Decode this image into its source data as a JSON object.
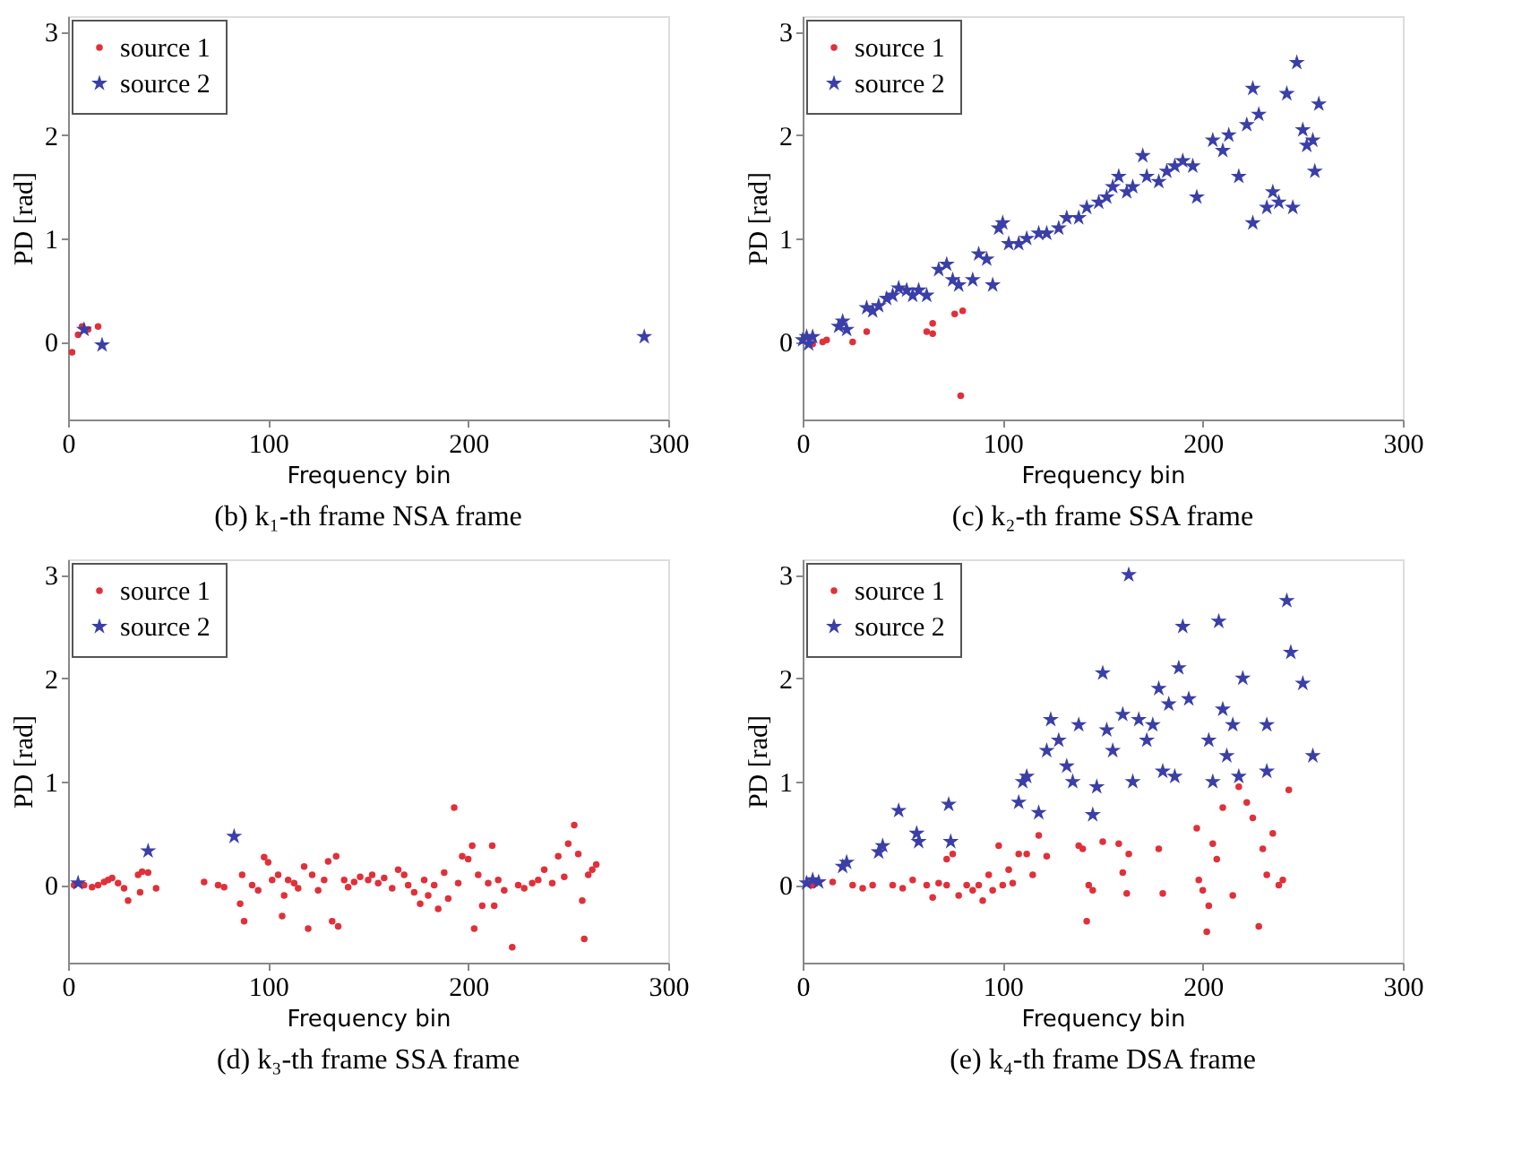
{
  "chart_data": [
    {
      "type": "scatter",
      "title": "(b) k₁-th frame  NSA frame",
      "xlabel": "Frequency bin",
      "ylabel": "PD  [rad]",
      "xlim": [
        0,
        300
      ],
      "ylim": [
        -0.75,
        3.15
      ],
      "xticks": [
        0,
        100,
        200,
        300
      ],
      "yticks": [
        0,
        1,
        2,
        3
      ],
      "grid": false,
      "legend": "top left",
      "series": [
        {
          "name": "source 1",
          "color": "#e0303a",
          "marker": "circle",
          "x": [
            2,
            5,
            7,
            10,
            15
          ],
          "values": [
            -0.1,
            0.07,
            0.15,
            0.12,
            0.15
          ]
        },
        {
          "name": "source 2",
          "color": "#3a3fa8",
          "marker": "star",
          "x": [
            8,
            17,
            288
          ],
          "values": [
            0.12,
            -0.03,
            0.05
          ]
        }
      ]
    },
    {
      "type": "scatter",
      "title": "(c) k₂-th frame  SSA frame",
      "xlabel": "Frequency bin",
      "ylabel": "PD  [rad]",
      "xlim": [
        0,
        300
      ],
      "ylim": [
        -0.75,
        3.15
      ],
      "xticks": [
        0,
        100,
        200,
        300
      ],
      "yticks": [
        0,
        1,
        2,
        3
      ],
      "grid": false,
      "legend": "top left",
      "series": [
        {
          "name": "source 1",
          "color": "#e0303a",
          "marker": "circle",
          "x": [
            5,
            10,
            12,
            25,
            32,
            62,
            65,
            65,
            76,
            80,
            79
          ],
          "values": [
            -0.02,
            0.0,
            0.02,
            0.0,
            0.1,
            0.1,
            0.08,
            0.18,
            0.27,
            0.3,
            -0.52
          ]
        },
        {
          "name": "source 2",
          "color": "#3a3fa8",
          "marker": "star",
          "x": [
            0,
            2,
            3,
            5,
            18,
            20,
            22,
            32,
            35,
            38,
            42,
            45,
            48,
            52,
            55,
            58,
            62,
            68,
            72,
            75,
            78,
            85,
            88,
            92,
            95,
            98,
            100,
            103,
            108,
            112,
            118,
            122,
            128,
            132,
            138,
            142,
            148,
            152,
            155,
            158,
            162,
            165,
            170,
            172,
            178,
            182,
            186,
            190,
            195,
            197,
            205,
            210,
            213,
            218,
            222,
            225,
            228,
            225,
            232,
            235,
            238,
            242,
            245,
            247,
            250,
            252,
            255,
            256,
            258
          ],
          "values": [
            0.02,
            0.05,
            -0.02,
            0.05,
            0.15,
            0.2,
            0.12,
            0.33,
            0.3,
            0.35,
            0.42,
            0.45,
            0.52,
            0.5,
            0.45,
            0.5,
            0.45,
            0.7,
            0.75,
            0.6,
            0.55,
            0.6,
            0.85,
            0.8,
            0.55,
            1.1,
            1.15,
            0.95,
            0.95,
            1.0,
            1.05,
            1.05,
            1.1,
            1.2,
            1.2,
            1.3,
            1.35,
            1.4,
            1.5,
            1.6,
            1.45,
            1.5,
            1.8,
            1.6,
            1.55,
            1.65,
            1.7,
            1.75,
            1.7,
            1.4,
            1.95,
            1.85,
            2.0,
            1.6,
            2.1,
            2.45,
            2.2,
            1.15,
            1.3,
            1.45,
            1.35,
            2.4,
            1.3,
            2.7,
            2.05,
            1.9,
            1.95,
            1.65,
            2.3
          ]
        }
      ]
    },
    {
      "type": "scatter",
      "title": "(d) k₃-th frame  SSA frame",
      "xlabel": "Frequency bin",
      "ylabel": "PD  [rad]",
      "xlim": [
        0,
        300
      ],
      "ylim": [
        -0.75,
        3.15
      ],
      "xticks": [
        0,
        100,
        200,
        300
      ],
      "yticks": [
        0,
        1,
        2,
        3
      ],
      "grid": false,
      "legend": "top left",
      "series": [
        {
          "name": "source 1",
          "color": "#e0303a",
          "marker": "circle",
          "x": [
            3,
            8,
            12,
            15,
            18,
            20,
            22,
            25,
            28,
            30,
            35,
            37,
            36,
            40,
            44,
            68,
            75,
            78,
            87,
            86,
            88,
            92,
            95,
            98,
            100,
            102,
            105,
            107,
            108,
            110,
            113,
            115,
            118,
            120,
            122,
            125,
            128,
            130,
            132,
            134,
            135,
            138,
            140,
            143,
            146,
            150,
            152,
            155,
            158,
            162,
            165,
            168,
            170,
            173,
            176,
            178,
            180,
            183,
            185,
            188,
            190,
            193,
            195,
            197,
            200,
            202,
            203,
            205,
            207,
            210,
            212,
            213,
            215,
            218,
            222,
            225,
            228,
            232,
            235,
            238,
            242,
            245,
            248,
            250,
            253,
            255,
            257,
            258,
            260,
            262,
            264
          ],
          "values": [
            0,
            0,
            -0.02,
            0,
            0.03,
            0.05,
            0.07,
            0.02,
            -0.03,
            -0.15,
            0.1,
            0.13,
            -0.07,
            0.12,
            -0.03,
            0.03,
            0.0,
            -0.02,
            0.1,
            -0.18,
            -0.35,
            0,
            -0.05,
            0.27,
            0.22,
            0.05,
            0.1,
            -0.3,
            -0.1,
            0.05,
            0.02,
            -0.03,
            0.18,
            -0.42,
            0.1,
            -0.05,
            0.05,
            0.23,
            -0.35,
            0.28,
            -0.4,
            0.05,
            -0.02,
            0.03,
            0.08,
            0.05,
            0.1,
            0.02,
            0.07,
            -0.03,
            0.15,
            0.1,
            0.0,
            -0.07,
            -0.18,
            0.05,
            -0.1,
            0.0,
            -0.23,
            0.12,
            -0.13,
            0.75,
            0.02,
            0.28,
            0.25,
            0.38,
            -0.42,
            0.1,
            -0.2,
            0.02,
            0.38,
            -0.2,
            0.05,
            -0.05,
            -0.6,
            0.0,
            -0.03,
            0.02,
            0.05,
            0.15,
            0.02,
            0.28,
            0.08,
            0.4,
            0.58,
            0.3,
            -0.15,
            -0.52,
            0.1,
            0.15,
            0.2
          ]
        },
        {
          "name": "source 2",
          "color": "#3a3fa8",
          "marker": "star",
          "x": [
            5,
            40,
            83
          ],
          "values": [
            0.02,
            0.33,
            0.47
          ]
        }
      ]
    },
    {
      "type": "scatter",
      "title": "(e) k₄-th frame  DSA frame",
      "xlabel": "Frequency bin",
      "ylabel": "PD  [rad]",
      "xlim": [
        0,
        300
      ],
      "ylim": [
        -0.75,
        3.15
      ],
      "xticks": [
        0,
        100,
        200,
        300
      ],
      "yticks": [
        0,
        1,
        2,
        3
      ],
      "grid": false,
      "legend": "top left",
      "series": [
        {
          "name": "source 1",
          "color": "#e0303a",
          "marker": "circle",
          "x": [
            5,
            15,
            25,
            30,
            35,
            45,
            50,
            55,
            62,
            65,
            68,
            72,
            72,
            75,
            78,
            82,
            85,
            88,
            90,
            93,
            95,
            98,
            100,
            103,
            105,
            108,
            112,
            115,
            118,
            122,
            138,
            140,
            142,
            143,
            145,
            150,
            158,
            160,
            162,
            163,
            178,
            180,
            197,
            198,
            200,
            202,
            203,
            205,
            207,
            210,
            215,
            218,
            222,
            225,
            228,
            230,
            232,
            235,
            238,
            240,
            243
          ],
          "values": [
            0,
            0.03,
            0.0,
            -0.03,
            0.0,
            0.0,
            -0.03,
            0.05,
            0.0,
            -0.12,
            0.02,
            0.25,
            0.0,
            0.3,
            -0.1,
            0.0,
            -0.05,
            0.0,
            -0.15,
            0.1,
            -0.05,
            0.38,
            0.0,
            0.15,
            0.02,
            0.3,
            0.3,
            0.1,
            0.48,
            0.28,
            0.38,
            0.35,
            -0.35,
            0.0,
            -0.05,
            0.42,
            0.4,
            0.12,
            -0.08,
            0.3,
            0.35,
            -0.08,
            0.55,
            0.05,
            -0.05,
            -0.45,
            -0.2,
            0.4,
            0.25,
            0.75,
            -0.1,
            0.95,
            0.8,
            0.65,
            -0.4,
            0.35,
            0.1,
            0.5,
            0.0,
            0.05,
            0.92
          ]
        },
        {
          "name": "source 2",
          "color": "#3a3fa8",
          "marker": "star",
          "x": [
            2,
            5,
            8,
            20,
            22,
            38,
            40,
            48,
            57,
            58,
            73,
            74,
            108,
            110,
            112,
            118,
            122,
            124,
            128,
            132,
            135,
            138,
            145,
            147,
            150,
            152,
            155,
            160,
            163,
            165,
            168,
            172,
            175,
            178,
            180,
            183,
            186,
            188,
            190,
            193,
            203,
            205,
            208,
            210,
            212,
            215,
            218,
            220,
            232,
            232,
            242,
            244,
            250,
            255
          ],
          "values": [
            0.02,
            0.05,
            0.03,
            0.18,
            0.22,
            0.32,
            0.38,
            0.72,
            0.5,
            0.42,
            0.78,
            0.42,
            0.8,
            1.0,
            1.05,
            0.7,
            1.3,
            1.6,
            1.4,
            1.15,
            1.0,
            1.55,
            0.68,
            0.95,
            2.05,
            1.5,
            1.3,
            1.65,
            3.0,
            1.0,
            1.6,
            1.4,
            1.55,
            1.9,
            1.1,
            1.75,
            1.05,
            2.1,
            2.5,
            1.8,
            1.4,
            1.0,
            2.55,
            1.7,
            1.25,
            1.55,
            1.05,
            2.0,
            1.55,
            1.1,
            2.75,
            2.25,
            1.95,
            1.25
          ]
        }
      ]
    }
  ]
}
